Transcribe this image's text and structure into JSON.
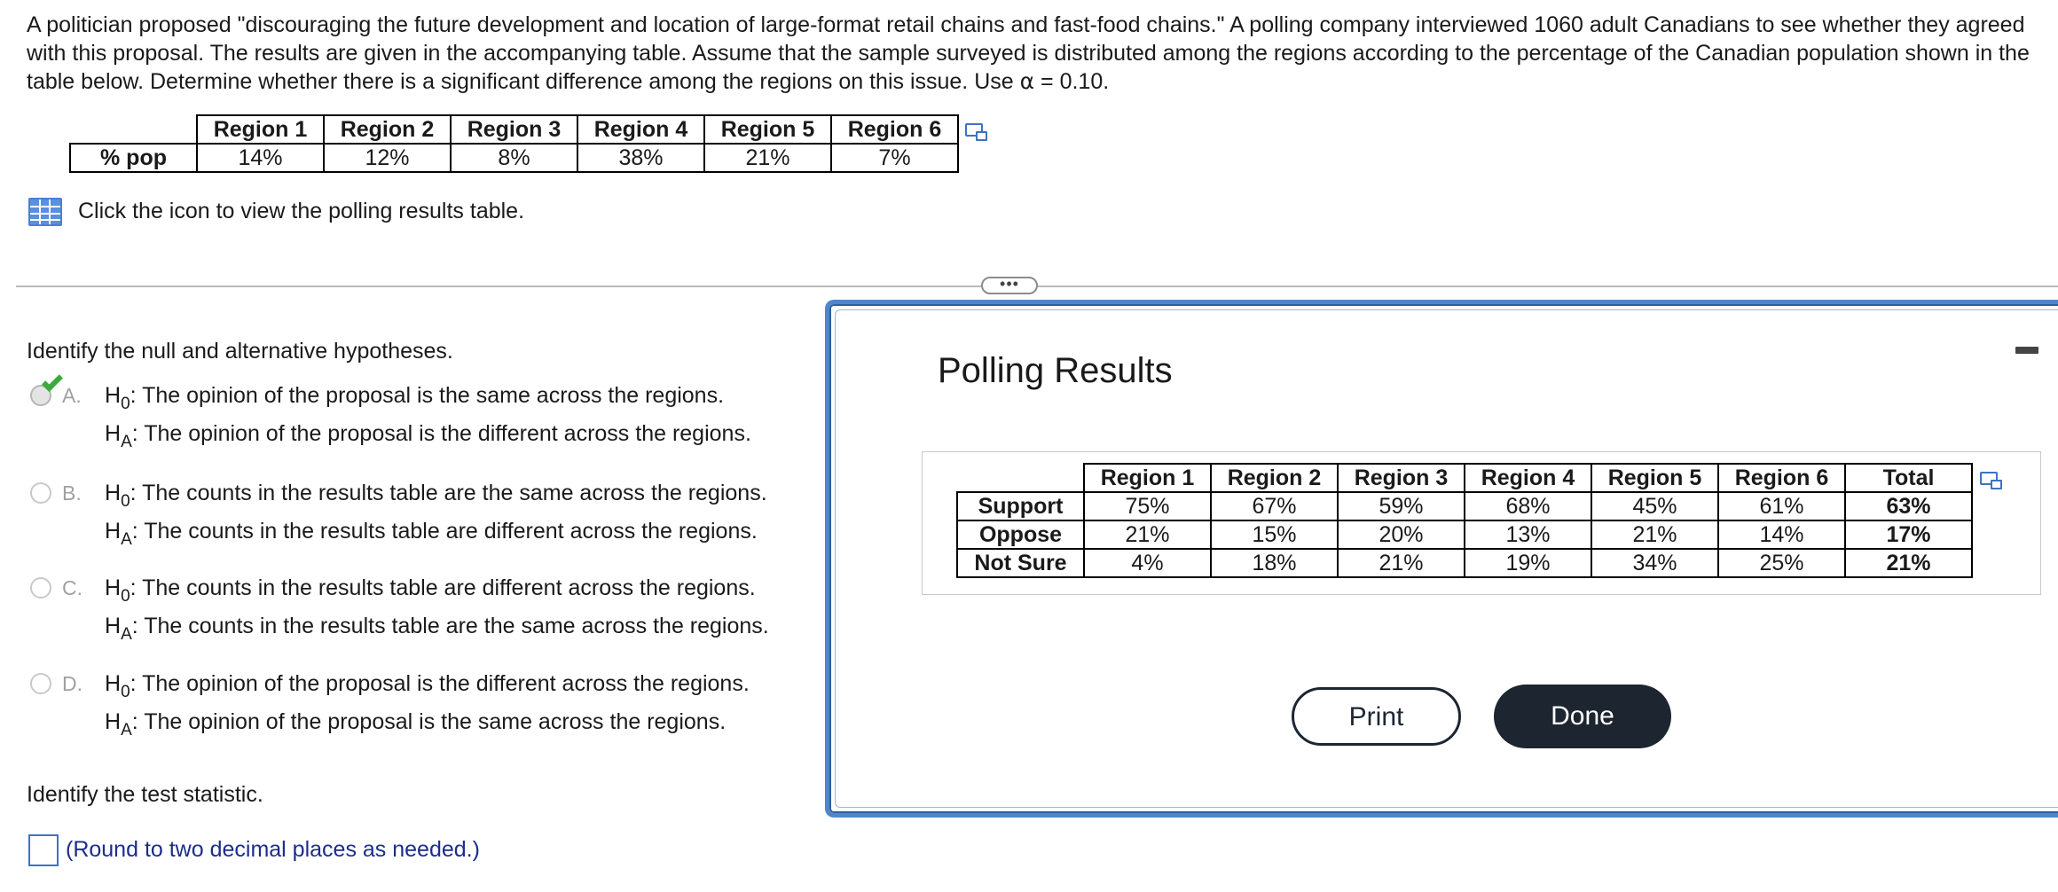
{
  "problem": {
    "text": "A politician proposed \"discouraging the future development and location of large-format retail chains and fast-food chains.\" A polling company interviewed 1060 adult Canadians to see whether they agreed with this proposal. The results are given in the accompanying table. Assume that the sample surveyed is distributed among the regions according to the percentage of the Canadian population shown in the table below. Determine whether there is a significant difference among the regions on this issue. Use ",
    "alpha_symbol": "α",
    "alpha_value": " = 0.10."
  },
  "population_table": {
    "row_label": "% pop",
    "headers": [
      "Region 1",
      "Region 2",
      "Region 3",
      "Region 4",
      "Region 5",
      "Region 6"
    ],
    "values": [
      "14%",
      "12%",
      "8%",
      "38%",
      "21%",
      "7%"
    ]
  },
  "click_prompt": "Click the icon to view the polling results table.",
  "expand_button": "•••",
  "question1": {
    "prompt": "Identify the null and alternative hypotheses.",
    "options": [
      {
        "letter": "A.",
        "h0": "The opinion of the proposal is the same across the regions.",
        "ha": "The opinion of the proposal is the different across the regions.",
        "selected": true
      },
      {
        "letter": "B.",
        "h0": "The counts in the results table are the same across the regions.",
        "ha": "The counts in the results table are different across the regions.",
        "selected": false
      },
      {
        "letter": "C.",
        "h0": "The counts in the results table are different across the regions.",
        "ha": "The counts in the results table are the same across the regions.",
        "selected": false
      },
      {
        "letter": "D.",
        "h0": "The opinion of the proposal is the different across the regions.",
        "ha": "The opinion of the proposal is the same across the regions.",
        "selected": false
      }
    ],
    "h0_symbol": "H",
    "h0_sub": "0",
    "ha_symbol": "H",
    "ha_sub": "A",
    "colon": ":"
  },
  "question2": {
    "prompt": "Identify the test statistic.",
    "note": "(Round to two decimal places as needed.)",
    "answer_value": ""
  },
  "dialog": {
    "title": "Polling Results",
    "table": {
      "headers": [
        "Region 1",
        "Region 2",
        "Region 3",
        "Region 4",
        "Region 5",
        "Region 6",
        "Total"
      ],
      "rows": [
        {
          "label": "Support",
          "values": [
            "75%",
            "67%",
            "59%",
            "68%",
            "45%",
            "61%",
            "63%"
          ]
        },
        {
          "label": "Oppose",
          "values": [
            "21%",
            "15%",
            "20%",
            "13%",
            "21%",
            "14%",
            "17%"
          ]
        },
        {
          "label": "Not Sure",
          "values": [
            "4%",
            "18%",
            "21%",
            "19%",
            "34%",
            "25%",
            "21%"
          ]
        }
      ]
    },
    "print_label": "Print",
    "done_label": "Done"
  },
  "colors": {
    "accent_blue": "#3c73c4",
    "check_green": "#3caa3c",
    "note_navy": "#1c2d8c",
    "done_button": "#1c2530"
  },
  "icons": [
    "copy-table-icon",
    "table-grid-icon",
    "minimize-icon",
    "check-icon"
  ]
}
